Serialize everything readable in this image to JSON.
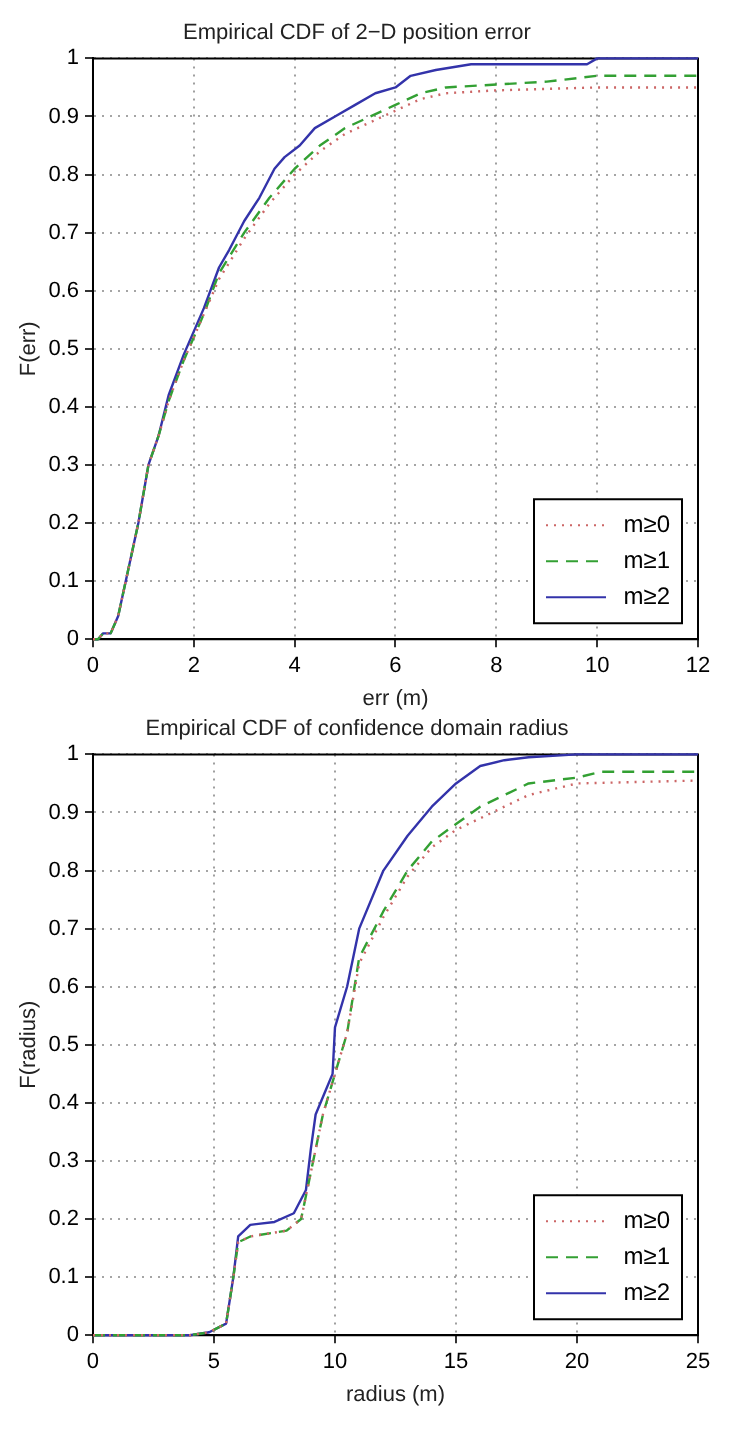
{
  "chart_data": [
    {
      "type": "line",
      "title": "Empirical CDF of 2−D position error",
      "xlabel": "err (m)",
      "ylabel": "F(err)",
      "xlim": [
        0,
        12
      ],
      "xticks": [
        0,
        2,
        4,
        6,
        8,
        10,
        12
      ],
      "ylim": [
        0,
        1
      ],
      "yticks": [
        0,
        0.1,
        0.2,
        0.3,
        0.4,
        0.5,
        0.6,
        0.7,
        0.8,
        0.9,
        1
      ],
      "grid": true,
      "legend": "bottom right",
      "marker": "none",
      "series": [
        {
          "name": "m≥0",
          "color": "#cc6666",
          "line_style": "dotted",
          "x": [
            0,
            0.1,
            0.2,
            0.35,
            0.5,
            0.7,
            0.9,
            1.1,
            1.3,
            1.5,
            1.8,
            2,
            2.2,
            2.5,
            3,
            3.5,
            4,
            4.5,
            5,
            5.5,
            6,
            6.5,
            7,
            8,
            10,
            12
          ],
          "values": [
            0,
            0,
            0.01,
            0.01,
            0.04,
            0.12,
            0.2,
            0.3,
            0.35,
            0.41,
            0.48,
            0.52,
            0.56,
            0.62,
            0.69,
            0.75,
            0.8,
            0.84,
            0.87,
            0.89,
            0.91,
            0.93,
            0.94,
            0.945,
            0.95,
            0.95
          ]
        },
        {
          "name": "m≥1",
          "color": "#33a033",
          "line_style": "dashed",
          "x": [
            0,
            0.1,
            0.2,
            0.35,
            0.5,
            0.7,
            0.9,
            1.1,
            1.3,
            1.5,
            1.8,
            2,
            2.2,
            2.5,
            3,
            3.5,
            4,
            4.5,
            5,
            5.5,
            6,
            6.5,
            7,
            8,
            9,
            10,
            12
          ],
          "values": [
            0,
            0,
            0.01,
            0.01,
            0.04,
            0.12,
            0.2,
            0.3,
            0.35,
            0.41,
            0.48,
            0.52,
            0.56,
            0.63,
            0.7,
            0.76,
            0.81,
            0.85,
            0.88,
            0.9,
            0.92,
            0.94,
            0.95,
            0.955,
            0.96,
            0.97,
            0.97
          ]
        },
        {
          "name": "m≥2",
          "color": "#3333aa",
          "line_style": "solid",
          "x": [
            0,
            0.1,
            0.2,
            0.35,
            0.5,
            0.7,
            0.9,
            1.1,
            1.3,
            1.5,
            1.8,
            2,
            2.2,
            2.5,
            2.7,
            3,
            3.3,
            3.6,
            3.8,
            4.1,
            4.4,
            4.8,
            5.2,
            5.6,
            6,
            6.3,
            6.8,
            7.5,
            9.8,
            10,
            12
          ],
          "values": [
            0,
            0,
            0.01,
            0.01,
            0.04,
            0.12,
            0.2,
            0.3,
            0.35,
            0.42,
            0.49,
            0.53,
            0.57,
            0.64,
            0.67,
            0.72,
            0.76,
            0.81,
            0.83,
            0.85,
            0.88,
            0.9,
            0.92,
            0.94,
            0.95,
            0.97,
            0.98,
            0.99,
            0.99,
            1,
            1
          ]
        }
      ]
    },
    {
      "type": "line",
      "title": "Empirical CDF of confidence domain radius",
      "xlabel": "radius (m)",
      "ylabel": "F(radius)",
      "xlim": [
        0,
        25
      ],
      "xticks": [
        0,
        5,
        10,
        15,
        20,
        25
      ],
      "ylim": [
        0,
        1
      ],
      "yticks": [
        0,
        0.1,
        0.2,
        0.3,
        0.4,
        0.5,
        0.6,
        0.7,
        0.8,
        0.9,
        1
      ],
      "grid": true,
      "legend": "bottom right",
      "marker": "none",
      "series": [
        {
          "name": "m≥0",
          "color": "#cc6666",
          "line_style": "dotted",
          "x": [
            0,
            4,
            4.8,
            5.5,
            5.8,
            6,
            6.5,
            8,
            8.6,
            9,
            9.5,
            10,
            10.5,
            11,
            12,
            13,
            14,
            15,
            16,
            17,
            18,
            20,
            25
          ],
          "values": [
            0,
            0,
            0.005,
            0.02,
            0.1,
            0.16,
            0.17,
            0.18,
            0.2,
            0.28,
            0.38,
            0.45,
            0.52,
            0.64,
            0.72,
            0.79,
            0.84,
            0.87,
            0.89,
            0.91,
            0.93,
            0.95,
            0.955
          ]
        },
        {
          "name": "m≥1",
          "color": "#33a033",
          "line_style": "dashed",
          "x": [
            0,
            4,
            4.8,
            5.5,
            5.8,
            6,
            6.5,
            8,
            8.6,
            9,
            9.5,
            10,
            10.5,
            11,
            12,
            13,
            14,
            15,
            16,
            17,
            18,
            20,
            21,
            25
          ],
          "values": [
            0,
            0,
            0.005,
            0.02,
            0.1,
            0.16,
            0.17,
            0.18,
            0.2,
            0.28,
            0.38,
            0.45,
            0.52,
            0.65,
            0.73,
            0.8,
            0.85,
            0.88,
            0.91,
            0.93,
            0.95,
            0.96,
            0.97,
            0.97
          ]
        },
        {
          "name": "m≥2",
          "color": "#3333aa",
          "line_style": "solid",
          "x": [
            0,
            4,
            4.8,
            5.5,
            5.8,
            6,
            6.5,
            7.5,
            8.3,
            8.8,
            9,
            9.2,
            9.6,
            9.9,
            10,
            10.5,
            11,
            12,
            13,
            14,
            15,
            16,
            17,
            18,
            20,
            25
          ],
          "values": [
            0,
            0,
            0.005,
            0.02,
            0.1,
            0.17,
            0.19,
            0.195,
            0.21,
            0.25,
            0.32,
            0.38,
            0.42,
            0.45,
            0.53,
            0.6,
            0.7,
            0.8,
            0.86,
            0.91,
            0.95,
            0.98,
            0.99,
            0.995,
            1,
            1
          ]
        }
      ]
    }
  ]
}
